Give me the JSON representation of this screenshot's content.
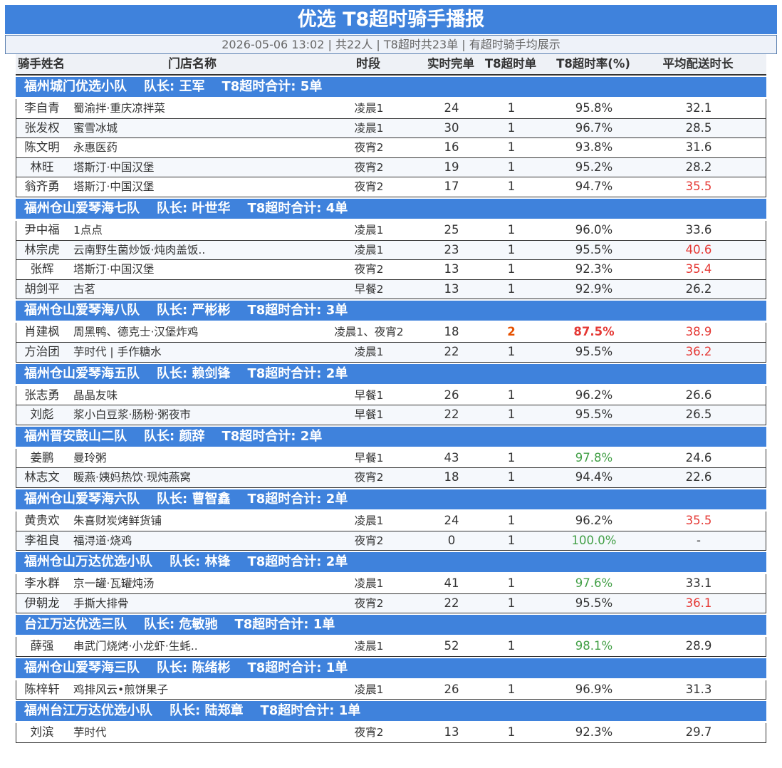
{
  "header": {
    "title": "优选 T8超时骑手播报",
    "subtitle": "2026-05-06 13:02 | 共22人 | T8超时共23单 | 有超时骑手均展示"
  },
  "columns": [
    "骑手姓名",
    "门店名称",
    "时段",
    "实时完单",
    "T8超时单",
    "T8超时率(%)",
    "平均配送时长"
  ],
  "groups": [
    {
      "name": "福州城门优选小队",
      "captain": "队长: 王军",
      "total": "T8超时合计: 5单",
      "rows": [
        {
          "rider": "李自青",
          "store": "蜀渝拌·重庆凉拌菜",
          "period": "凌晨1",
          "done": "24",
          "overtime": "1",
          "rate": "95.8%",
          "avg_time": "32.1"
        },
        {
          "rider": "张发权",
          "store": "蜜雪冰城",
          "period": "凌晨1",
          "done": "30",
          "overtime": "1",
          "rate": "96.7%",
          "avg_time": "28.5"
        },
        {
          "rider": "陈文明",
          "store": "永惠医药",
          "period": "夜宵2",
          "done": "16",
          "overtime": "1",
          "rate": "93.8%",
          "avg_time": "31.6"
        },
        {
          "rider": "林旺",
          "store": "塔斯汀·中国汉堡",
          "period": "夜宵2",
          "done": "19",
          "overtime": "1",
          "rate": "95.2%",
          "avg_time": "28.2"
        },
        {
          "rider": "翁齐勇",
          "store": "塔斯汀·中国汉堡",
          "period": "夜宵2",
          "done": "17",
          "overtime": "1",
          "rate": "94.7%",
          "avg_time": "35.5",
          "colors": {
            "avg_time": "#e53935"
          }
        }
      ]
    },
    {
      "name": "福州仓山爱琴海七队",
      "captain": "队长: 叶世华",
      "total": "T8超时合计: 4单",
      "rows": [
        {
          "rider": "尹中福",
          "store": "1点点",
          "period": "凌晨1",
          "done": "25",
          "overtime": "1",
          "rate": "96.0%",
          "avg_time": "33.6"
        },
        {
          "rider": "林宗虎",
          "store": "云南野生菌炒饭·炖肉盖饭..",
          "period": "凌晨1",
          "done": "23",
          "overtime": "1",
          "rate": "95.5%",
          "avg_time": "40.6",
          "colors": {
            "avg_time": "#e53935"
          }
        },
        {
          "rider": "张辉",
          "store": "塔斯汀·中国汉堡",
          "period": "夜宵2",
          "done": "13",
          "overtime": "1",
          "rate": "92.3%",
          "avg_time": "35.4",
          "colors": {
            "avg_time": "#e53935"
          }
        },
        {
          "rider": "胡剑平",
          "store": "古茗",
          "period": "早餐2",
          "done": "13",
          "overtime": "1",
          "rate": "92.9%",
          "avg_time": "26.2"
        }
      ]
    },
    {
      "name": "福州仓山爱琴海八队",
      "captain": "队长: 严彬彬",
      "total": "T8超时合计: 3单",
      "rows": [
        {
          "rider": "肖建枫",
          "store": "周黑鸭、德克士·汉堡炸鸡",
          "period": "凌晨1、夜宵2",
          "done": "18",
          "overtime": "2",
          "rate": "87.5%",
          "avg_time": "38.9",
          "colors": {
            "overtime": "#e65100",
            "rate": "#e53935",
            "avg_time": "#e53935"
          },
          "bold": [
            "overtime",
            "rate"
          ]
        },
        {
          "rider": "方治团",
          "store": "芋时代 | 手作糖水",
          "period": "凌晨1",
          "done": "22",
          "overtime": "1",
          "rate": "95.5%",
          "avg_time": "36.2",
          "colors": {
            "avg_time": "#e53935"
          }
        }
      ]
    },
    {
      "name": "福州仓山爱琴海五队",
      "captain": "队长: 赖剑锋",
      "total": "T8超时合计: 2单",
      "rows": [
        {
          "rider": "张志勇",
          "store": "晶晶友味",
          "period": "早餐1",
          "done": "26",
          "overtime": "1",
          "rate": "96.2%",
          "avg_time": "26.6"
        },
        {
          "rider": "刘彪",
          "store": "浆小白豆浆·肠粉·粥夜市",
          "period": "早餐1",
          "done": "22",
          "overtime": "1",
          "rate": "95.5%",
          "avg_time": "26.5"
        }
      ]
    },
    {
      "name": "福州晋安鼓山二队",
      "captain": "队长: 颜辞",
      "total": "T8超时合计: 2单",
      "rows": [
        {
          "rider": "姜鹏",
          "store": "曼玲粥",
          "period": "早餐1",
          "done": "43",
          "overtime": "1",
          "rate": "97.8%",
          "avg_time": "24.6",
          "colors": {
            "rate": "#43a047"
          }
        },
        {
          "rider": "林志文",
          "store": "暖燕·姨妈热饮·现炖燕窝",
          "period": "夜宵2",
          "done": "18",
          "overtime": "1",
          "rate": "94.4%",
          "avg_time": "22.6"
        }
      ]
    },
    {
      "name": "福州仓山爱琴海六队",
      "captain": "队长: 曹智鑫",
      "total": "T8超时合计: 2单",
      "rows": [
        {
          "rider": "黄贵欢",
          "store": "朱喜财炭烤鲜货铺",
          "period": "凌晨1",
          "done": "24",
          "overtime": "1",
          "rate": "96.2%",
          "avg_time": "35.5",
          "colors": {
            "avg_time": "#e53935"
          }
        },
        {
          "rider": "李祖良",
          "store": "福浔道·烧鸡",
          "period": "夜宵2",
          "done": "0",
          "overtime": "1",
          "rate": "100.0%",
          "avg_time": "-",
          "colors": {
            "rate": "#43a047"
          }
        }
      ]
    },
    {
      "name": "福州仓山万达优选小队",
      "captain": "队长: 林锋",
      "total": "T8超时合计: 2单",
      "rows": [
        {
          "rider": "李水群",
          "store": "京一罐·瓦罐炖汤",
          "period": "凌晨1",
          "done": "41",
          "overtime": "1",
          "rate": "97.6%",
          "avg_time": "33.1",
          "colors": {
            "rate": "#43a047"
          }
        },
        {
          "rider": "伊朝龙",
          "store": "手撕大排骨",
          "period": "夜宵2",
          "done": "22",
          "overtime": "1",
          "rate": "95.5%",
          "avg_time": "36.1",
          "colors": {
            "avg_time": "#e53935"
          }
        }
      ]
    },
    {
      "name": "台江万达优选三队",
      "captain": "队长: 危敏驰",
      "total": "T8超时合计: 1单",
      "rows": [
        {
          "rider": "薛强",
          "store": "串武门烧烤·小龙虾·生蚝..",
          "period": "凌晨1",
          "done": "52",
          "overtime": "1",
          "rate": "98.1%",
          "avg_time": "28.9",
          "colors": {
            "rate": "#43a047"
          }
        }
      ]
    },
    {
      "name": "福州仓山爱琴海三队",
      "captain": "队长: 陈绪彬",
      "total": "T8超时合计: 1单",
      "rows": [
        {
          "rider": "陈梓轩",
          "store": "鸡排风云•煎饼果子",
          "period": "凌晨1",
          "done": "26",
          "overtime": "1",
          "rate": "96.9%",
          "avg_time": "31.3"
        }
      ]
    },
    {
      "name": "福州台江万达优选小队",
      "captain": "队长: 陆郑章",
      "total": "T8超时合计: 1单",
      "rows": [
        {
          "rider": "刘滨",
          "store": "芋时代",
          "period": "夜宵2",
          "done": "13",
          "overtime": "1",
          "rate": "92.3%",
          "avg_time": "29.7"
        }
      ]
    }
  ]
}
